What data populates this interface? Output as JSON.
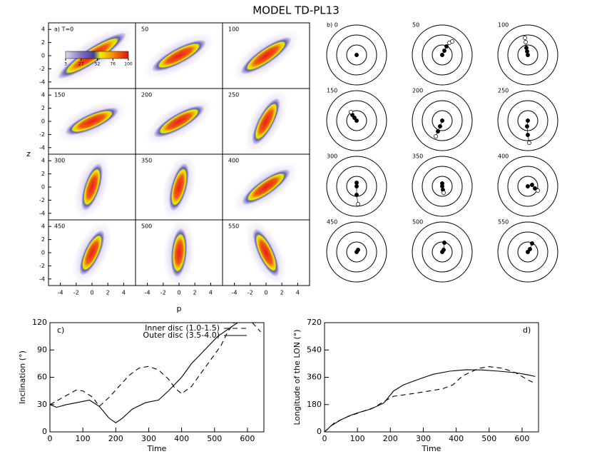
{
  "title": "MODEL TD-PL13",
  "chart_data": [
    {
      "type": "density",
      "xlabel": "p",
      "ylabel": "z",
      "panels": [
        "a) T=0",
        "50",
        "100",
        "150",
        "200",
        "250",
        "300",
        "350",
        "400",
        "450",
        "500",
        "550"
      ],
      "xlim": [
        -5.5,
        5.5
      ],
      "ylim": [
        -5,
        5
      ],
      "xticks": [
        -4,
        -2,
        0,
        2,
        4
      ],
      "yticks": [
        -4,
        -2,
        0,
        2,
        4
      ],
      "colorbar_ticks": [
        3,
        27,
        52,
        76,
        100
      ]
    },
    {
      "type": "orbit",
      "panels": [
        "b) 0",
        "50",
        "100",
        "150",
        "200",
        "250",
        "300",
        "350",
        "400",
        "450",
        "500",
        "550"
      ]
    },
    {
      "type": "line",
      "label": "c)",
      "xlabel": "Time",
      "ylabel": "Inclination (°)",
      "xlim": [
        0,
        650
      ],
      "ylim": [
        0,
        120
      ],
      "xticks": [
        0,
        100,
        200,
        300,
        400,
        500,
        600
      ],
      "yticks": [
        0,
        30,
        60,
        90,
        120
      ],
      "series": [
        {
          "name": "Inner disc (1.0-1.5)",
          "dash": true,
          "x": [
            0,
            40,
            80,
            100,
            130,
            150,
            180,
            210,
            240,
            270,
            300,
            330,
            360,
            380,
            400,
            430,
            460,
            490,
            520,
            540,
            560,
            590,
            615,
            640
          ],
          "values": [
            30,
            38,
            46,
            45,
            38,
            28,
            38,
            50,
            62,
            70,
            72,
            68,
            58,
            48,
            42,
            50,
            65,
            80,
            95,
            110,
            120,
            null,
            120,
            110
          ]
        },
        {
          "name": "Outer disc (3.5-4.0)",
          "dash": false,
          "x": [
            0,
            20,
            50,
            80,
            120,
            150,
            180,
            200,
            220,
            250,
            290,
            330,
            360,
            400,
            430,
            470,
            510,
            550,
            570
          ],
          "values": [
            30,
            27,
            30,
            32,
            35,
            28,
            15,
            10,
            15,
            25,
            32,
            35,
            45,
            60,
            75,
            90,
            105,
            115,
            120
          ]
        }
      ]
    },
    {
      "type": "line",
      "label": "d)",
      "xlabel": "Time",
      "ylabel": "Longitude of the LON (°)",
      "xlim": [
        0,
        650
      ],
      "ylim": [
        0,
        720
      ],
      "xticks": [
        0,
        100,
        200,
        300,
        400,
        500,
        600
      ],
      "yticks": [
        0,
        180,
        360,
        540,
        720
      ],
      "series": [
        {
          "name": "Inner disc (1.0-1.5)",
          "dash": true,
          "x": [
            0,
            30,
            70,
            110,
            150,
            180,
            210,
            260,
            320,
            360,
            390,
            420,
            470,
            500,
            540,
            580,
            620,
            640
          ],
          "values": [
            0,
            60,
            100,
            130,
            160,
            200,
            235,
            250,
            270,
            285,
            310,
            370,
            420,
            430,
            420,
            390,
            340,
            320
          ]
        },
        {
          "name": "Outer disc (3.5-4.0)",
          "dash": false,
          "x": [
            0,
            20,
            50,
            80,
            100,
            140,
            180,
            210,
            240,
            290,
            330,
            380,
            430,
            480,
            530,
            580,
            620,
            640
          ],
          "values": [
            0,
            40,
            80,
            110,
            125,
            150,
            190,
            270,
            310,
            350,
            380,
            400,
            410,
            408,
            400,
            390,
            375,
            365
          ]
        }
      ]
    }
  ]
}
